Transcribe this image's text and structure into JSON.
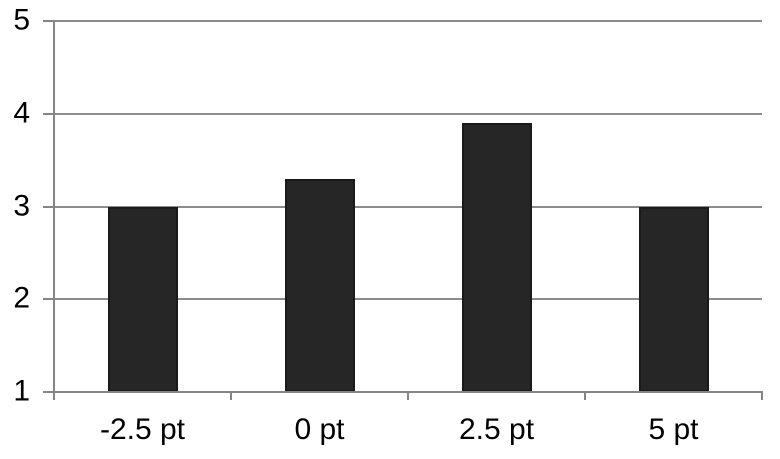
{
  "chart_data": {
    "type": "bar",
    "title": "",
    "xlabel": "",
    "ylabel": "",
    "categories": [
      "-2.5 pt",
      "0 pt",
      "2.5 pt",
      "5 pt"
    ],
    "values": [
      3.0,
      3.3,
      3.9,
      3.0
    ],
    "ylim": [
      1,
      5
    ],
    "yticks": [
      1,
      2,
      3,
      4,
      5
    ],
    "ytick_labels": [
      "1",
      "2",
      "3",
      "4",
      "5"
    ],
    "grid": "horizontal-on",
    "legend": "none",
    "colors": {
      "bar_fill": "#262626",
      "bar_border": "#1a1a1a",
      "gridline": "#8c8c8c",
      "axis": "#858585",
      "label_text": "#000000",
      "background": "#ffffff"
    }
  }
}
